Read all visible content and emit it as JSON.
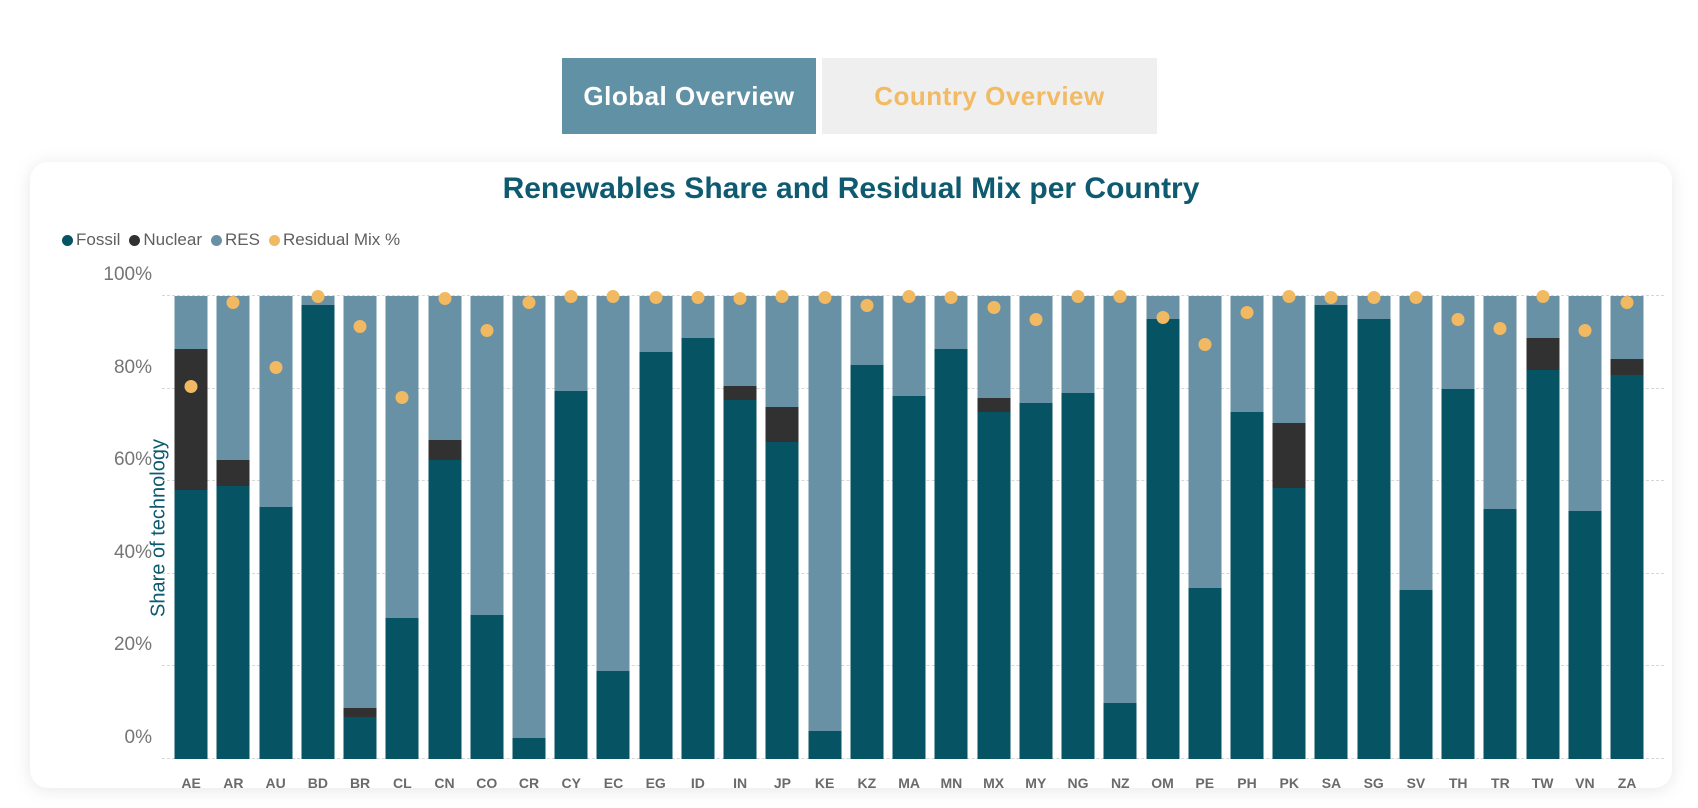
{
  "tabs": [
    {
      "label": "Global Overview",
      "state": "active"
    },
    {
      "label": "Country Overview",
      "state": "inactive"
    }
  ],
  "colors": {
    "tab_active_bg": "#6191a5",
    "tab_active_text": "#ffffff",
    "tab_inactive_bg": "#efeff0",
    "tab_inactive_text": "#f1ba63",
    "title_text": "#0e5a70",
    "axis_title_text": "#0c5a70",
    "tick_label_text": "#757575",
    "gridline": "#d7d7d7"
  },
  "chart_data": {
    "type": "bar",
    "stacked": true,
    "title": "Renewables Share and Residual Mix per Country",
    "xlabel": "",
    "ylabel": "Share of technology",
    "ylim": [
      0,
      100
    ],
    "yticks": [
      "0%",
      "20%",
      "40%",
      "60%",
      "80%",
      "100%"
    ],
    "grid": "dashed-horizontal",
    "legend_position": "top-left",
    "categories": [
      "AE",
      "AR",
      "AU",
      "BD",
      "BR",
      "CL",
      "CN",
      "CO",
      "CR",
      "CY",
      "EC",
      "EG",
      "ID",
      "IN",
      "JP",
      "KE",
      "KZ",
      "MA",
      "MN",
      "MX",
      "MY",
      "NG",
      "NZ",
      "OM",
      "PE",
      "PH",
      "PK",
      "SA",
      "SG",
      "SV",
      "TH",
      "TR",
      "TW",
      "VN",
      "ZA"
    ],
    "series": [
      {
        "name": "Fossil",
        "render": "bar",
        "color": "#065364",
        "values": [
          58,
          59,
          54.5,
          98,
          9,
          30.5,
          64.5,
          31,
          4.5,
          79.5,
          19,
          88,
          91,
          77.5,
          68.5,
          6,
          85,
          78.5,
          88.5,
          75,
          77,
          79,
          12,
          95,
          37,
          75,
          58.5,
          98,
          95,
          36.5,
          80,
          54,
          84,
          53.5,
          83
        ]
      },
      {
        "name": "Nuclear",
        "render": "bar",
        "color": "#313131",
        "values": [
          30.5,
          5.5,
          0,
          0,
          2,
          0,
          4.5,
          0,
          0,
          0,
          0,
          0,
          0,
          3,
          7.5,
          0,
          0,
          0,
          0,
          3,
          0,
          0,
          0,
          0,
          0,
          0,
          14,
          0,
          0,
          0,
          0,
          0,
          7,
          0,
          3.5
        ]
      },
      {
        "name": "RES",
        "render": "bar",
        "color": "#6991a5",
        "values": [
          11.5,
          35.5,
          45.5,
          2,
          89,
          69.5,
          31,
          69,
          95.5,
          20.5,
          81,
          12,
          9,
          19.5,
          24,
          94,
          15,
          21.5,
          11.5,
          22,
          23,
          21,
          88,
          5,
          63,
          25,
          27.5,
          2,
          5,
          63.5,
          20,
          46,
          9,
          46.5,
          13.5
        ]
      },
      {
        "name": "Residual Mix %",
        "render": "point",
        "color": "#f1b961",
        "values": [
          80.5,
          98.5,
          84.5,
          100,
          93.5,
          78,
          99.5,
          92.5,
          98.5,
          100,
          99.8,
          99.6,
          99.6,
          99.4,
          100,
          99.6,
          98,
          100,
          99.6,
          97.5,
          95,
          100,
          100,
          95.4,
          89.5,
          96.4,
          100,
          99.6,
          99.6,
          99.6,
          95,
          93,
          100,
          92.5,
          98.7
        ]
      }
    ]
  }
}
